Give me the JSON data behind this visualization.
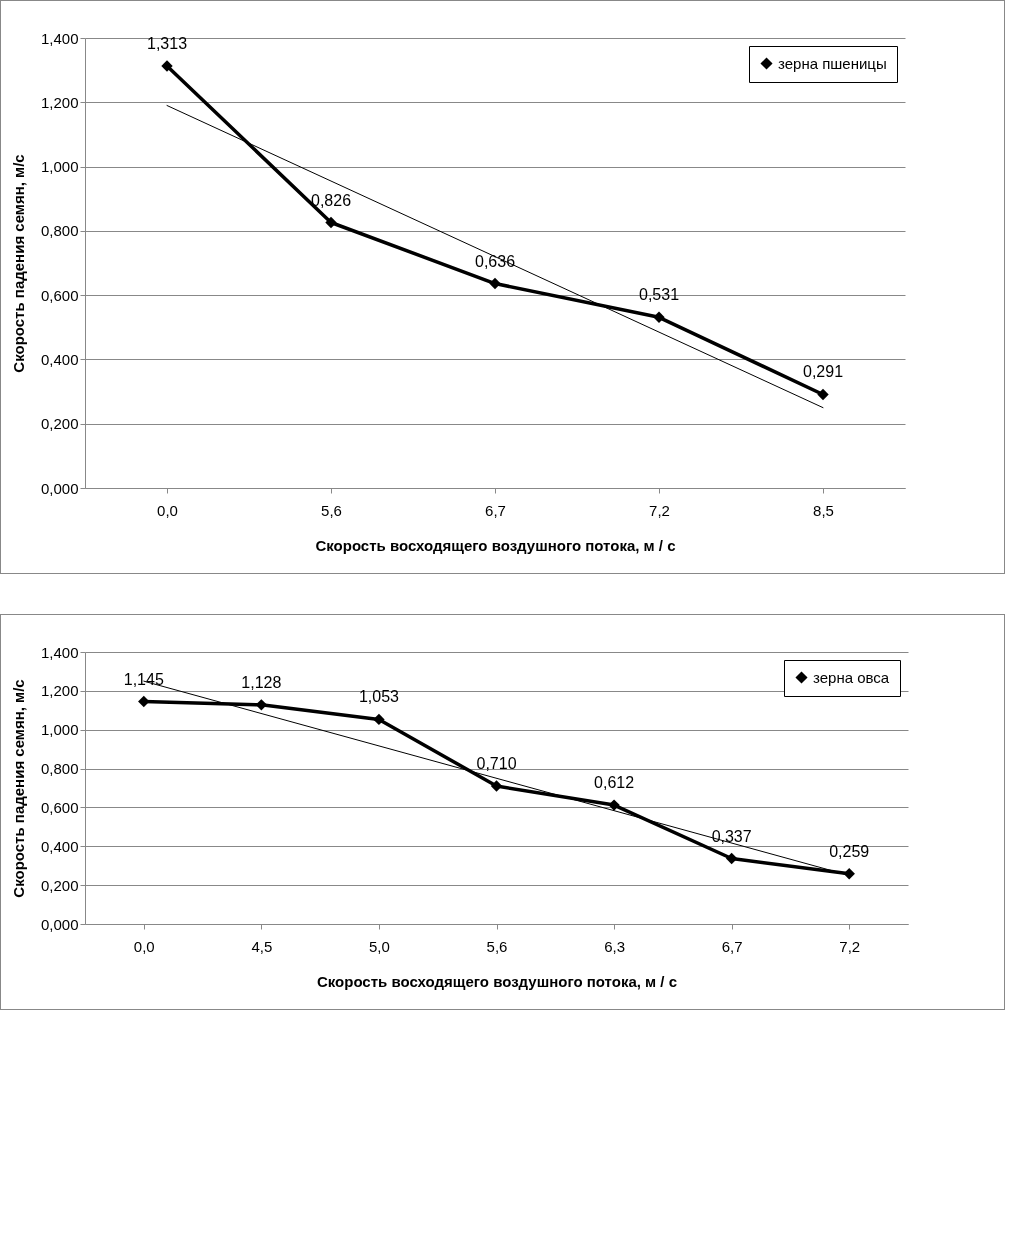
{
  "chart_data": [
    {
      "type": "line",
      "xlabel": "Скорость восходящего воздушного потока, м / с",
      "ylabel": "Скорость падения семян, м/с",
      "categories": [
        "0,0",
        "5,6",
        "6,7",
        "7,2",
        "8,5"
      ],
      "ylim": [
        0,
        1.4
      ],
      "yticks": [
        {
          "value": 0,
          "label": "0,000"
        },
        {
          "value": 0.2,
          "label": "0,200"
        },
        {
          "value": 0.4,
          "label": "0,400"
        },
        {
          "value": 0.6,
          "label": "0,600"
        },
        {
          "value": 0.8,
          "label": "0,800"
        },
        {
          "value": 1,
          "label": "1,000"
        },
        {
          "value": 1.2,
          "label": "1,200"
        },
        {
          "value": 1.4,
          "label": "1,400"
        }
      ],
      "grid": "y",
      "legend": "top right",
      "marker": "diamond",
      "series": [
        {
          "name": "зерна пшеницы",
          "color": "#000000",
          "values": [
            1.313,
            0.826,
            0.636,
            0.531,
            0.291
          ],
          "value_labels": [
            "1,313",
            "0,826",
            "0,636",
            "0,531",
            "0,291"
          ]
        },
        {
          "type": "line",
          "color": "#000000",
          "x": [
            "0,0",
            "8,5"
          ],
          "values": [
            1.19,
            0.25
          ],
          "marker": "none"
        }
      ]
    },
    {
      "type": "line",
      "xlabel": "Скорость восходящего воздушного потока, м / с",
      "ylabel": "Скорость падения семян, м/с",
      "categories": [
        "0,0",
        "4,5",
        "5,0",
        "5,6",
        "6,3",
        "6,7",
        "7,2"
      ],
      "ylim": [
        0,
        1.4
      ],
      "yticks": [
        {
          "value": 0,
          "label": "0,000"
        },
        {
          "value": 0.2,
          "label": "0,200"
        },
        {
          "value": 0.4,
          "label": "0,400"
        },
        {
          "value": 0.6,
          "label": "0,600"
        },
        {
          "value": 0.8,
          "label": "0,800"
        },
        {
          "value": 1,
          "label": "1,000"
        },
        {
          "value": 1.2,
          "label": "1,200"
        },
        {
          "value": 1.4,
          "label": "1,400"
        }
      ],
      "grid": "y",
      "legend": "top right",
      "marker": "diamond",
      "series": [
        {
          "name": "зерна овса",
          "color": "#000000",
          "values": [
            1.145,
            1.128,
            1.053,
            0.71,
            0.612,
            0.337,
            0.259
          ],
          "value_labels": [
            "1,145",
            "1,128",
            "1,053",
            "0,710",
            "0,612",
            "0,337",
            "0,259"
          ]
        },
        {
          "type": "line",
          "color": "#000000",
          "x": [
            "0,0",
            "7,2"
          ],
          "values": [
            1.25,
            0.25
          ],
          "marker": "none"
        }
      ]
    }
  ]
}
